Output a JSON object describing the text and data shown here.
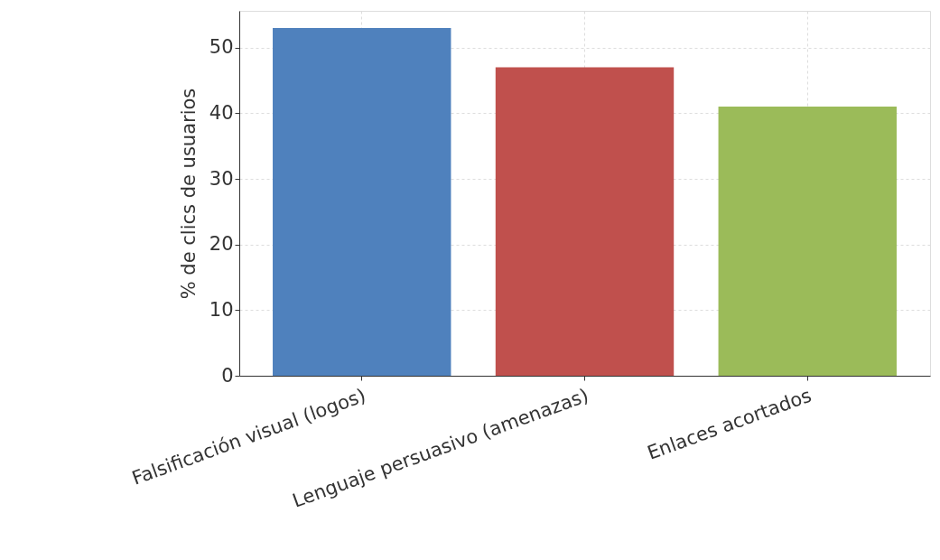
{
  "chart_data": {
    "type": "bar",
    "ylabel": "% de clics de usuarios",
    "categories": [
      "Falsificación visual (logos)",
      "Lenguaje persuasivo (amenazas)",
      "Enlaces acortados"
    ],
    "values": [
      53,
      47,
      41
    ],
    "colors": [
      "#4f81bd",
      "#c0504d",
      "#9bbb59"
    ],
    "ylim": [
      0,
      55.6
    ],
    "yticks": [
      0,
      10,
      20,
      30,
      40,
      50
    ],
    "grid": true
  }
}
